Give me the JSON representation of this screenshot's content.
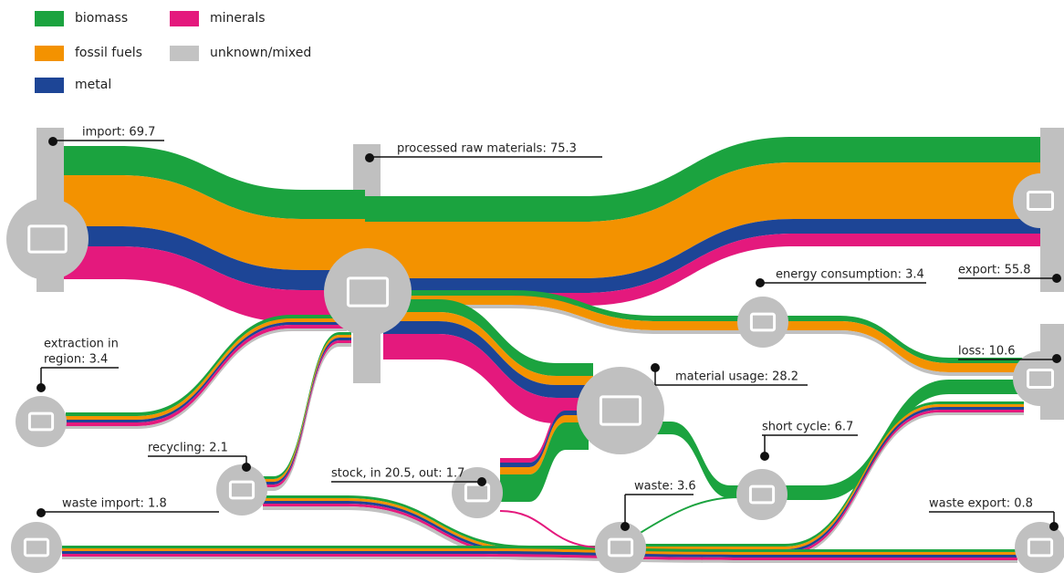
{
  "legend": [
    {
      "name": "biomass",
      "color": "#1ba33f"
    },
    {
      "name": "fossil fuels",
      "color": "#f39200"
    },
    {
      "name": "metal",
      "color": "#1d4596"
    },
    {
      "name": "minerals",
      "color": "#e4197d"
    },
    {
      "name": "unknown/mixed",
      "color": "#c3c3c3"
    }
  ],
  "nodes": [
    {
      "lines": [
        "import: 69.7"
      ]
    },
    {
      "lines": [
        "processed raw materials: 75.3"
      ]
    },
    {
      "lines": [
        "export: 55.8"
      ]
    },
    {
      "lines": [
        "energy consumption: 3.4"
      ]
    },
    {
      "lines": [
        "loss: 10.6"
      ]
    },
    {
      "lines": [
        "extraction in",
        "region: 3.4"
      ]
    },
    {
      "lines": [
        "material usage: 28.2"
      ]
    },
    {
      "lines": [
        "recycling: 2.1"
      ]
    },
    {
      "lines": [
        "stock, in 20.5, out: 1.7"
      ]
    },
    {
      "lines": [
        "short cycle: 6.7"
      ]
    },
    {
      "lines": [
        "waste: 3.6"
      ]
    },
    {
      "lines": [
        "waste import: 1.8"
      ]
    },
    {
      "lines": [
        "waste export: 0.8"
      ]
    }
  ]
}
